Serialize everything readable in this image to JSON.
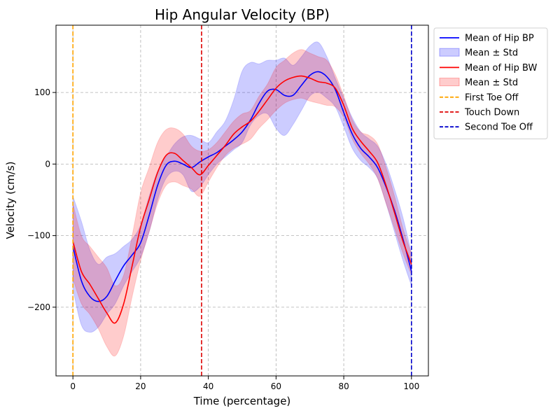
{
  "chart_data": {
    "type": "line",
    "title": "Hip Angular Velocity (BP)",
    "xlabel": "Time (percentage)",
    "ylabel": "Velocity (cm/s)",
    "xlim": [
      -5,
      105
    ],
    "ylim": [
      -296,
      194
    ],
    "xticks": [
      0,
      20,
      40,
      60,
      80,
      100
    ],
    "yticks": [
      -200,
      -100,
      0,
      100
    ],
    "grid": true,
    "legend_position": "outside-top-right",
    "x": [
      0,
      2.5,
      5,
      7.5,
      10,
      12.5,
      15,
      17.5,
      20,
      22.5,
      25,
      27.5,
      30,
      32.5,
      35,
      37.5,
      40,
      42.5,
      45,
      47.5,
      50,
      52.5,
      55,
      57.5,
      60,
      62.5,
      65,
      67.5,
      70,
      72.5,
      75,
      77.5,
      80,
      82.5,
      85,
      87.5,
      90,
      92.5,
      95,
      97.5,
      100
    ],
    "series": [
      {
        "name": "Mean of Hip BP",
        "color": "#0000ff",
        "band_label": "Mean ± Std",
        "band_color": "#0000ff",
        "mean": [
          -115,
          -163,
          -185,
          -192,
          -185,
          -163,
          -142,
          -127,
          -110,
          -72,
          -30,
          -2,
          4,
          0,
          -5,
          3,
          10,
          16,
          25,
          34,
          45,
          62,
          85,
          102,
          104,
          96,
          96,
          110,
          124,
          129,
          122,
          104,
          72,
          42,
          22,
          10,
          -5,
          -32,
          -65,
          -105,
          -150
        ],
        "upper": [
          -45,
          -80,
          -120,
          -140,
          -130,
          -125,
          -115,
          -105,
          -85,
          -45,
          -10,
          10,
          28,
          38,
          40,
          35,
          30,
          45,
          60,
          90,
          130,
          142,
          140,
          145,
          145,
          148,
          138,
          150,
          165,
          170,
          150,
          120,
          92,
          65,
          45,
          35,
          25,
          0,
          -35,
          -75,
          -125
        ],
        "lower": [
          -175,
          -225,
          -235,
          -228,
          -210,
          -195,
          -170,
          -150,
          -130,
          -95,
          -50,
          -20,
          -10,
          -15,
          -38,
          -32,
          -15,
          0,
          10,
          20,
          30,
          55,
          68,
          70,
          50,
          40,
          55,
          75,
          95,
          100,
          92,
          80,
          52,
          22,
          5,
          -5,
          -20,
          -55,
          -95,
          -135,
          -170
        ]
      },
      {
        "name": "Mean of Hip BW",
        "color": "#ff0000",
        "band_label": "Mean ± Std",
        "band_color": "#ff0000",
        "mean": [
          -108,
          -150,
          -168,
          -188,
          -208,
          -222,
          -195,
          -142,
          -88,
          -50,
          -12,
          12,
          15,
          5,
          -5,
          -15,
          -2,
          12,
          26,
          42,
          52,
          60,
          74,
          90,
          106,
          116,
          121,
          123,
          120,
          115,
          113,
          106,
          82,
          50,
          32,
          18,
          2,
          -30,
          -68,
          -108,
          -140
        ],
        "upper": [
          -55,
          -100,
          -115,
          -130,
          -145,
          -170,
          -155,
          -100,
          -40,
          -5,
          30,
          48,
          50,
          42,
          25,
          18,
          20,
          30,
          45,
          60,
          70,
          75,
          95,
          112,
          135,
          145,
          155,
          160,
          155,
          150,
          145,
          125,
          95,
          62,
          45,
          40,
          28,
          -5,
          -45,
          -90,
          -125
        ],
        "lower": [
          -160,
          -195,
          -210,
          -230,
          -255,
          -268,
          -240,
          -185,
          -135,
          -95,
          -55,
          -30,
          -25,
          -30,
          -35,
          -45,
          -25,
          -5,
          12,
          22,
          28,
          35,
          50,
          62,
          75,
          85,
          90,
          92,
          88,
          85,
          82,
          80,
          65,
          35,
          15,
          0,
          -20,
          -55,
          -90,
          -125,
          -155
        ]
      }
    ],
    "vlines": [
      {
        "x": 0,
        "label": "First Toe Off",
        "color": "#ffa500"
      },
      {
        "x": 38,
        "label": "Touch Down",
        "color": "#dd0000"
      },
      {
        "x": 100,
        "label": "Second Toe Off",
        "color": "#0000cc"
      }
    ]
  }
}
